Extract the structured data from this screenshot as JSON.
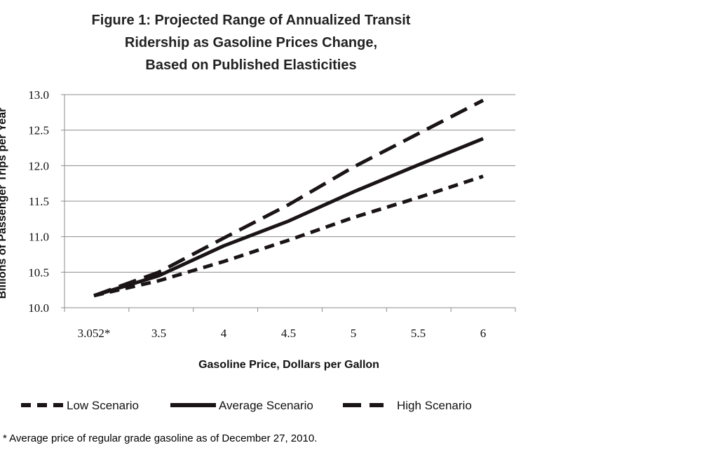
{
  "chart_data": {
    "type": "line",
    "title_lines": [
      "Figure 1: Projected Range of Annualized Transit",
      "Ridership as Gasoline Prices Change,",
      "Based on Published Elasticities"
    ],
    "xlabel": "Gasoline Price, Dollars per Gallon",
    "ylabel": "Billions of Passenger Trips per Year",
    "categories": [
      "3.052*",
      "3.5",
      "4",
      "4.5",
      "5",
      "5.5",
      "6"
    ],
    "ylim": [
      10.0,
      13.0
    ],
    "yticks": [
      "10.0",
      "10.5",
      "11.0",
      "11.5",
      "12.0",
      "12.5",
      "13.0"
    ],
    "grid": "horizontal",
    "legend_position": "bottom",
    "series": [
      {
        "name": "Low Scenario",
        "style": "dashed",
        "values": [
          10.17,
          10.38,
          10.65,
          10.95,
          11.27,
          11.55,
          11.85
        ]
      },
      {
        "name": "Average Scenario",
        "style": "solid",
        "values": [
          10.17,
          10.45,
          10.87,
          11.22,
          11.63,
          12.01,
          12.38
        ]
      },
      {
        "name": "High Scenario",
        "style": "long-dashed",
        "values": [
          10.17,
          10.5,
          10.98,
          11.45,
          11.98,
          12.45,
          12.92
        ]
      }
    ],
    "colors": {
      "lines": "#1a1416",
      "grid": "#8c8c8c",
      "axis": "#8c8c8c"
    }
  },
  "footnote": "* Average price of regular grade gasoline as of December 27, 2010."
}
